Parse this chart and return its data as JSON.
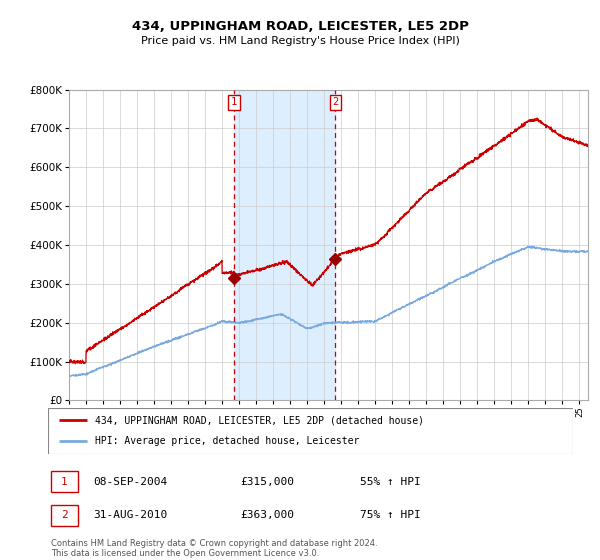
{
  "title1": "434, UPPINGHAM ROAD, LEICESTER, LE5 2DP",
  "title2": "Price paid vs. HM Land Registry's House Price Index (HPI)",
  "legend_line1": "434, UPPINGHAM ROAD, LEICESTER, LE5 2DP (detached house)",
  "legend_line2": "HPI: Average price, detached house, Leicester",
  "sale1_label": "1",
  "sale1_date": "08-SEP-2004",
  "sale1_price": "£315,000",
  "sale1_hpi": "55% ↑ HPI",
  "sale2_label": "2",
  "sale2_date": "31-AUG-2010",
  "sale2_price": "£363,000",
  "sale2_hpi": "75% ↑ HPI",
  "footnote": "Contains HM Land Registry data © Crown copyright and database right 2024.\nThis data is licensed under the Open Government Licence v3.0.",
  "hpi_color": "#7aaadd",
  "property_color": "#cc0000",
  "sale_marker_color": "#990000",
  "vline_color": "#cc0000",
  "shade_color": "#ddeeff",
  "grid_color": "#cccccc",
  "background_color": "#ffffff",
  "ymax": 800000,
  "ymin": 0,
  "sale1_x": 2004.69,
  "sale2_x": 2010.66,
  "xmin": 1995,
  "xmax": 2025.5
}
